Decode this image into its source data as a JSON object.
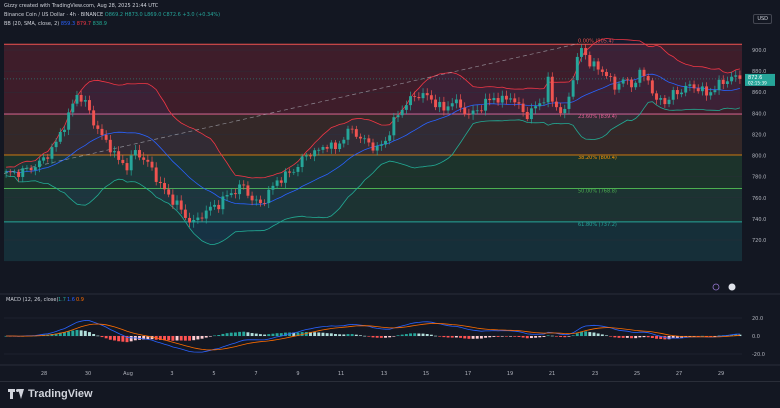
{
  "header": {
    "credit": "Gizzy created with TradingView.com, Aug 28, 2025 21:44 UTC",
    "symbol": "Binance Coin / US Dollar · 4h · BINANCE",
    "o": "O869.2",
    "h": "H873.0",
    "l": "L869.0",
    "c": "C872.6",
    "chg": "+3.0 (+0.34%)",
    "bb_label": "BB (20, SMA, close, 2)",
    "bb_basis": "859.3",
    "bb_upper": "879.7",
    "bb_lower": "838.9"
  },
  "macd": {
    "label": "MACD (12, 26, close)",
    "hist": "1.7",
    "macd": "1.6",
    "signal": "0.9"
  },
  "currency": "USD",
  "last_price": {
    "value": "872.6",
    "countdown": "02:15:39"
  },
  "footer": {
    "brand": "TradingView"
  },
  "chart_data": {
    "type": "candlestick",
    "symbol": "BNBUSD",
    "timeframe": "4h",
    "price_ticks": [
      900,
      880,
      860,
      840,
      820,
      800,
      780,
      760,
      740,
      720
    ],
    "macd_ticks": [
      "20.0",
      "0.0",
      "-20.0"
    ],
    "x_ticks": [
      "28",
      "30",
      "Aug",
      "3",
      "5",
      "7",
      "9",
      "11",
      "13",
      "15",
      "17",
      "19",
      "21",
      "23",
      "25",
      "27",
      "29"
    ],
    "fib_levels": [
      {
        "label": "0.00% (905.4)",
        "price": 905.4,
        "color": "#ef5350"
      },
      {
        "label": "23.60% (839.4)",
        "price": 839.4,
        "color": "#f06292"
      },
      {
        "label": "38.20% (800.4)",
        "price": 800.4,
        "color": "#ff9800"
      },
      {
        "label": "50.00% (768.8)",
        "price": 768.8,
        "color": "#4caf50"
      },
      {
        "label": "61.80% (737.2)",
        "price": 737.2,
        "color": "#26a69a"
      }
    ],
    "fib_bottom": 700,
    "colors": {
      "up": "#26a69a",
      "down": "#ef5350",
      "macd": "#2962ff",
      "signal": "#ff6d00",
      "bb_basis": "#2962ff",
      "bb_band": "#f23645",
      "bb_low": "#22ab94"
    },
    "close_path": [
      [
        0,
        783
      ],
      [
        3,
        784
      ],
      [
        6,
        788
      ],
      [
        9,
        796
      ],
      [
        12,
        812
      ],
      [
        15,
        838
      ],
      [
        17,
        858
      ],
      [
        19,
        850
      ],
      [
        21,
        832
      ],
      [
        23,
        818
      ],
      [
        25,
        808
      ],
      [
        27,
        795
      ],
      [
        29,
        790
      ],
      [
        31,
        804
      ],
      [
        33,
        797
      ],
      [
        35,
        787
      ],
      [
        37,
        772
      ],
      [
        39,
        762
      ],
      [
        41,
        754
      ],
      [
        43,
        742
      ],
      [
        45,
        736
      ],
      [
        47,
        744
      ],
      [
        49,
        750
      ],
      [
        51,
        754
      ],
      [
        53,
        762
      ],
      [
        55,
        767
      ],
      [
        57,
        771
      ],
      [
        59,
        758
      ],
      [
        61,
        754
      ],
      [
        63,
        765
      ],
      [
        65,
        776
      ],
      [
        67,
        781
      ],
      [
        69,
        786
      ],
      [
        71,
        796
      ],
      [
        73,
        803
      ],
      [
        75,
        804
      ],
      [
        77,
        811
      ],
      [
        79,
        806
      ],
      [
        81,
        818
      ],
      [
        83,
        825
      ],
      [
        85,
        816
      ],
      [
        87,
        812
      ],
      [
        89,
        806
      ],
      [
        91,
        814
      ],
      [
        93,
        832
      ],
      [
        95,
        845
      ],
      [
        97,
        853
      ],
      [
        99,
        858
      ],
      [
        101,
        856
      ],
      [
        103,
        850
      ],
      [
        105,
        843
      ],
      [
        107,
        852
      ],
      [
        109,
        846
      ],
      [
        111,
        838
      ],
      [
        113,
        843
      ],
      [
        115,
        850
      ],
      [
        117,
        855
      ],
      [
        119,
        852
      ],
      [
        121,
        856
      ],
      [
        123,
        846
      ],
      [
        125,
        838
      ],
      [
        127,
        846
      ],
      [
        129,
        854
      ],
      [
        130,
        870
      ],
      [
        131,
        852
      ],
      [
        133,
        842
      ],
      [
        134,
        840
      ],
      [
        136,
        874
      ],
      [
        137,
        892
      ],
      [
        138,
        900
      ],
      [
        139,
        896
      ],
      [
        140,
        888
      ],
      [
        142,
        882
      ],
      [
        144,
        878
      ],
      [
        145,
        870
      ],
      [
        146,
        864
      ],
      [
        147,
        870
      ],
      [
        148,
        872
      ],
      [
        150,
        866
      ],
      [
        152,
        878
      ],
      [
        154,
        872
      ],
      [
        155,
        862
      ],
      [
        156,
        848
      ],
      [
        157,
        856
      ],
      [
        158,
        850
      ],
      [
        160,
        858
      ],
      [
        162,
        862
      ],
      [
        164,
        866
      ],
      [
        166,
        864
      ],
      [
        168,
        858
      ],
      [
        170,
        864
      ],
      [
        172,
        870
      ],
      [
        174,
        874
      ],
      [
        176,
        872.6
      ]
    ]
  }
}
